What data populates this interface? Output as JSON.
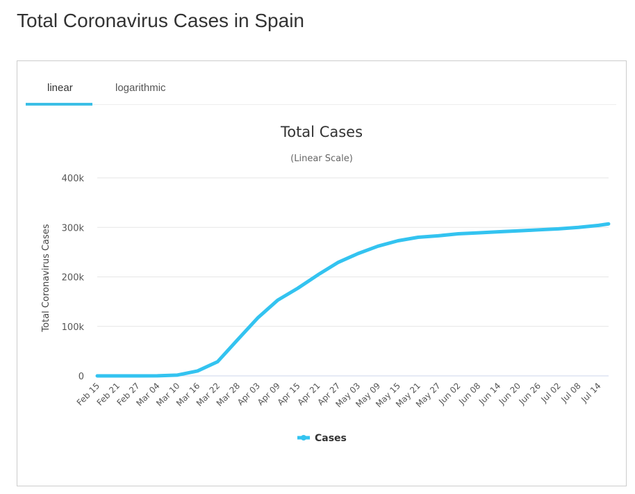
{
  "page_title": "Total Coronavirus Cases in Spain",
  "tabs": [
    {
      "label": "linear",
      "active": true
    },
    {
      "label": "logarithmic",
      "active": false
    }
  ],
  "chart_data": {
    "type": "line",
    "title": "Total Cases",
    "subtitle": "(Linear Scale)",
    "ylabel": "Total Coronavirus Cases",
    "xlabel": "",
    "ylim": [
      0,
      400000
    ],
    "yticks": [
      "0",
      "100k",
      "200k",
      "300k",
      "400k"
    ],
    "xticks": [
      "Feb 15",
      "Feb 21",
      "Feb 27",
      "Mar 04",
      "Mar 10",
      "Mar 16",
      "Mar 22",
      "Mar 28",
      "Apr 03",
      "Apr 09",
      "Apr 15",
      "Apr 21",
      "Apr 27",
      "May 03",
      "May 09",
      "May 15",
      "May 21",
      "May 27",
      "Jun 02",
      "Jun 08",
      "Jun 14",
      "Jun 20",
      "Jun 26",
      "Jul 02",
      "Jul 08",
      "Jul 14"
    ],
    "grid": true,
    "legend_position": "bottom",
    "color": "#33c3f0",
    "series": [
      {
        "name": "Cases",
        "x_day_offsets": [
          0,
          6,
          12,
          18,
          24,
          30,
          36,
          42,
          48,
          54,
          60,
          66,
          72,
          78,
          84,
          90,
          96,
          102,
          108,
          114,
          120,
          126,
          132,
          138,
          144,
          150,
          153
        ],
        "values": [
          2,
          2,
          12,
          200,
          1600,
          9900,
          28600,
          73000,
          117000,
          153000,
          177000,
          204000,
          229000,
          247000,
          262000,
          273000,
          280000,
          283000,
          287000,
          289000,
          291000,
          293000,
          295000,
          297000,
          300000,
          304000,
          307000
        ]
      }
    ]
  }
}
